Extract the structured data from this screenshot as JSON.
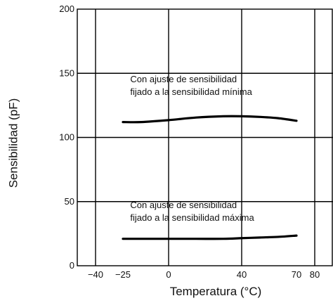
{
  "chart_data": {
    "type": "line",
    "title": "",
    "xlabel": "Temperatura (°C)",
    "ylabel": "Sensibilidad  (pF)",
    "xlim": [
      -50,
      90
    ],
    "ylim": [
      0,
      200
    ],
    "x_ticks": [
      {
        "value": -40,
        "label": "−40"
      },
      {
        "value": -25,
        "label": "−25"
      },
      {
        "value": 0,
        "label": "0"
      },
      {
        "value": 40,
        "label": "40"
      },
      {
        "value": 70,
        "label": "70"
      },
      {
        "value": 80,
        "label": "80"
      }
    ],
    "x_gridlines": [
      -40,
      0,
      40,
      80
    ],
    "y_ticks": [
      {
        "value": 0,
        "label": "0"
      },
      {
        "value": 50,
        "label": "50"
      },
      {
        "value": 100,
        "label": "100"
      },
      {
        "value": 150,
        "label": "150"
      },
      {
        "value": 200,
        "label": "200"
      }
    ],
    "y_gridlines": [
      50,
      100,
      150
    ],
    "grid": true,
    "series": [
      {
        "x": [
          -25,
          -15,
          0,
          15,
          30,
          40,
          50,
          60,
          70
        ],
        "y": [
          112,
          112,
          113.5,
          115.5,
          116.5,
          116.5,
          116,
          115,
          113
        ]
      },
      {
        "x": [
          -25,
          -10,
          0,
          15,
          30,
          40,
          50,
          60,
          70
        ],
        "y": [
          21,
          21,
          21,
          21,
          21,
          21.5,
          22,
          22.5,
          23.5
        ]
      }
    ],
    "annotations": [
      {
        "lines": [
          "Con ajuste de sensibilidad",
          "fijado a la sensibilidad mínima"
        ],
        "x": -21,
        "y": 143
      },
      {
        "lines": [
          "Con ajuste de sensibilidad",
          "fijado a la sensibilidad máxima"
        ],
        "x": -21,
        "y": 45
      }
    ]
  }
}
